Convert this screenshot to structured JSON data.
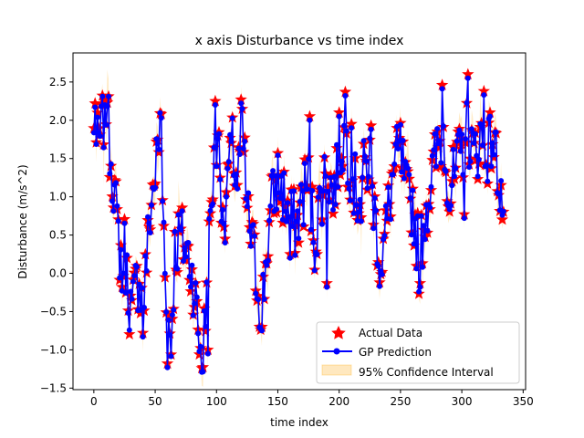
{
  "chart_data": {
    "type": "line",
    "title": "x axis Disturbance vs time index",
    "xlabel": "time index",
    "ylabel": "Disturbance (m/s^2)",
    "xlim": [
      -17,
      352
    ],
    "ylim": [
      -1.52,
      2.88
    ],
    "xticks": [
      0,
      50,
      100,
      150,
      200,
      250,
      300,
      350
    ],
    "yticks": [
      -1.5,
      -1.0,
      -0.5,
      0.0,
      0.5,
      1.0,
      1.5,
      2.0,
      2.5
    ],
    "ytick_labels": [
      "−1.5",
      "−1.0",
      "−0.5",
      "0.0",
      "0.5",
      "1.0",
      "1.5",
      "2.0",
      "2.5"
    ],
    "grid": false,
    "legend_position": "lower-right",
    "colors": {
      "actual": "#ff0000",
      "prediction": "#0000ff",
      "confidence": "#ffa500"
    },
    "anchors": [
      [
        0,
        1.75
      ],
      [
        3,
        1.6
      ],
      [
        6,
        1.85
      ],
      [
        10,
        2.2
      ],
      [
        13,
        1.7
      ],
      [
        16,
        1.2
      ],
      [
        19,
        0.6
      ],
      [
        22,
        0.2
      ],
      [
        25,
        0.3
      ],
      [
        28,
        -0.2
      ],
      [
        31,
        -0.55
      ],
      [
        34,
        -0.2
      ],
      [
        37,
        0.0
      ],
      [
        40,
        -0.5
      ],
      [
        43,
        0.2
      ],
      [
        46,
        0.8
      ],
      [
        50,
        1.3
      ],
      [
        54,
        1.9
      ],
      [
        57,
        0.6
      ],
      [
        60,
        -0.5
      ],
      [
        63,
        -0.9
      ],
      [
        66,
        0.3
      ],
      [
        70,
        0.5
      ],
      [
        74,
        0.35
      ],
      [
        78,
        0.2
      ],
      [
        82,
        -0.2
      ],
      [
        86,
        -0.9
      ],
      [
        89,
        -1.1
      ],
      [
        93,
        0.1
      ],
      [
        97,
        1.2
      ],
      [
        101,
        1.8
      ],
      [
        105,
        0.9
      ],
      [
        109,
        1.3
      ],
      [
        113,
        1.6
      ],
      [
        117,
        1.2
      ],
      [
        121,
        1.9
      ],
      [
        125,
        0.8
      ],
      [
        129,
        0.4
      ],
      [
        133,
        -0.1
      ],
      [
        137,
        -0.5
      ],
      [
        141,
        0.3
      ],
      [
        145,
        0.9
      ],
      [
        150,
        1.25
      ],
      [
        155,
        1.0
      ],
      [
        160,
        0.7
      ],
      [
        165,
        0.6
      ],
      [
        170,
        1.0
      ],
      [
        175,
        1.2
      ],
      [
        180,
        0.4
      ],
      [
        185,
        1.0
      ],
      [
        190,
        1.4
      ],
      [
        195,
        1.0
      ],
      [
        200,
        1.6
      ],
      [
        205,
        1.8
      ],
      [
        210,
        1.3
      ],
      [
        215,
        1.0
      ],
      [
        220,
        1.3
      ],
      [
        225,
        1.5
      ],
      [
        230,
        0.6
      ],
      [
        235,
        0.2
      ],
      [
        240,
        0.8
      ],
      [
        245,
        1.4
      ],
      [
        250,
        1.6
      ],
      [
        255,
        1.0
      ],
      [
        260,
        0.9
      ],
      [
        265,
        0.2
      ],
      [
        270,
        0.8
      ],
      [
        275,
        1.2
      ],
      [
        280,
        1.6
      ],
      [
        285,
        1.9
      ],
      [
        290,
        1.0
      ],
      [
        295,
        1.3
      ],
      [
        300,
        1.6
      ],
      [
        305,
        1.9
      ],
      [
        310,
        1.5
      ],
      [
        315,
        1.8
      ],
      [
        320,
        1.6
      ],
      [
        325,
        1.8
      ],
      [
        330,
        1.3
      ],
      [
        334,
        0.8
      ]
    ],
    "spikes": [
      [
        1,
        2.22
      ],
      [
        9,
        2.25
      ],
      [
        11,
        2.23
      ],
      [
        55,
        2.08
      ],
      [
        88,
        -1.24
      ],
      [
        99,
        2.25
      ],
      [
        107,
        0.45
      ],
      [
        120,
        2.27
      ],
      [
        127,
        0.6
      ],
      [
        137,
        -0.7
      ],
      [
        176,
        2.05
      ],
      [
        190,
        -0.13
      ],
      [
        200,
        2.1
      ],
      [
        205,
        2.37
      ],
      [
        210,
        1.95
      ],
      [
        218,
        0.73
      ],
      [
        226,
        1.93
      ],
      [
        233,
        -0.12
      ],
      [
        266,
        -0.13
      ],
      [
        268,
        0.13
      ],
      [
        284,
        2.46
      ],
      [
        305,
        2.6
      ],
      [
        318,
        2.38
      ],
      [
        302,
        0.77
      ],
      [
        323,
        2.1
      ],
      [
        160,
        0.25
      ],
      [
        93,
        -1.0
      ],
      [
        60,
        -1.18
      ],
      [
        40,
        -0.78
      ],
      [
        23,
        -0.18
      ]
    ],
    "point_count": 335
  },
  "legend": {
    "actual": "Actual Data",
    "prediction": "GP Prediction",
    "confidence": "95% Confidence Interval"
  }
}
